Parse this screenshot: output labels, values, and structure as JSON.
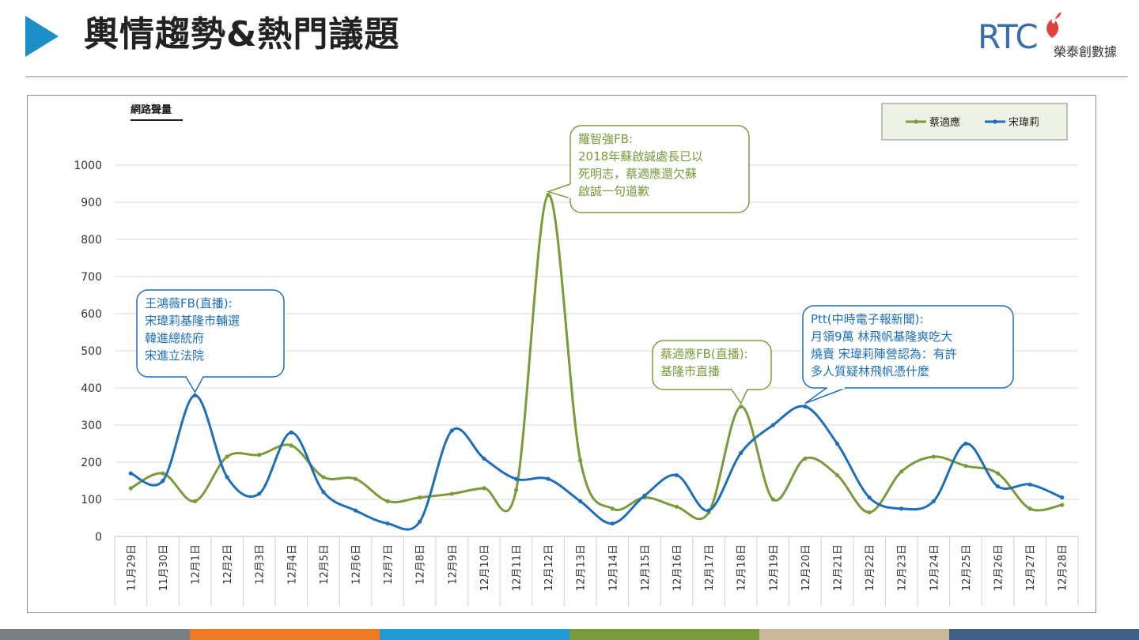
{
  "header": {
    "title": "輿情趨勢&熱門議題",
    "logo_letters": "RTC",
    "logo_sub": "榮泰創數據"
  },
  "colors": {
    "accent": "#1b8fc6",
    "series_green": "#7a9a3c",
    "series_blue": "#1e6fb8",
    "footer": [
      "#7b7f86",
      "#f07a22",
      "#1f9ad6",
      "#7a9a3c",
      "#c9b99a",
      "#3e5f86"
    ]
  },
  "chart_data": {
    "type": "line",
    "title": "網路聲量",
    "xlabel": "",
    "ylabel": "網路聲量",
    "ylim": [
      0,
      1000
    ],
    "yticks": [
      0,
      100,
      200,
      300,
      400,
      500,
      600,
      700,
      800,
      900,
      1000
    ],
    "categories": [
      "11月29日",
      "11月30日",
      "12月1日",
      "12月2日",
      "12月3日",
      "12月4日",
      "12月5日",
      "12月6日",
      "12月7日",
      "12月8日",
      "12月9日",
      "12月10日",
      "12月11日",
      "12月12日",
      "12月13日",
      "12月14日",
      "12月15日",
      "12月16日",
      "12月17日",
      "12月18日",
      "12月19日",
      "12月20日",
      "12月21日",
      "12月22日",
      "12月23日",
      "12月24日",
      "12月25日",
      "12月26日",
      "12月27日",
      "12月28日"
    ],
    "legend": [
      "蔡適應",
      "宋瑋莉"
    ],
    "legend_position": "top-right",
    "series": [
      {
        "name": "蔡適應",
        "color": "#7a9a3c",
        "values": [
          130,
          170,
          95,
          215,
          220,
          245,
          160,
          155,
          95,
          105,
          115,
          130,
          125,
          920,
          205,
          75,
          105,
          80,
          65,
          350,
          100,
          210,
          165,
          65,
          175,
          215,
          190,
          170,
          75,
          85
        ]
      },
      {
        "name": "宋瑋莉",
        "color": "#1e6fb8",
        "values": [
          170,
          150,
          380,
          160,
          115,
          280,
          120,
          70,
          35,
          40,
          285,
          210,
          155,
          155,
          95,
          35,
          110,
          165,
          70,
          225,
          300,
          350,
          250,
          105,
          75,
          95,
          250,
          135,
          140,
          105
        ]
      }
    ],
    "annotations": [
      {
        "name": "wang-hongwei",
        "series": 1,
        "index": 2,
        "color": "#1e6fb8",
        "lines": [
          "王鴻薇FB(直播):",
          "宋瑋莉基隆市輔選",
          "韓進總統府",
          "宋進立法院"
        ]
      },
      {
        "name": "luo-zhiqiang",
        "series": 0,
        "index": 13,
        "color": "#7a9a3c",
        "lines": [
          "羅智強FB:",
          "2018年蘇啟誠處長已以",
          "死明志，蔡適應還欠蘇",
          "啟誠一句道歉"
        ]
      },
      {
        "name": "cai-shiying",
        "series": 0,
        "index": 19,
        "color": "#7a9a3c",
        "lines": [
          "蔡適應FB(直播):",
          "基隆市直播"
        ]
      },
      {
        "name": "ptt-news",
        "series": 1,
        "index": 21,
        "color": "#1e6fb8",
        "lines": [
          "Ptt(中時電子報新聞):",
          "月領9萬 林飛帆基隆爽吃大",
          "燒賣 宋瑋莉陣營認為：有許",
          "多人質疑林飛帆憑什麼"
        ]
      }
    ]
  }
}
